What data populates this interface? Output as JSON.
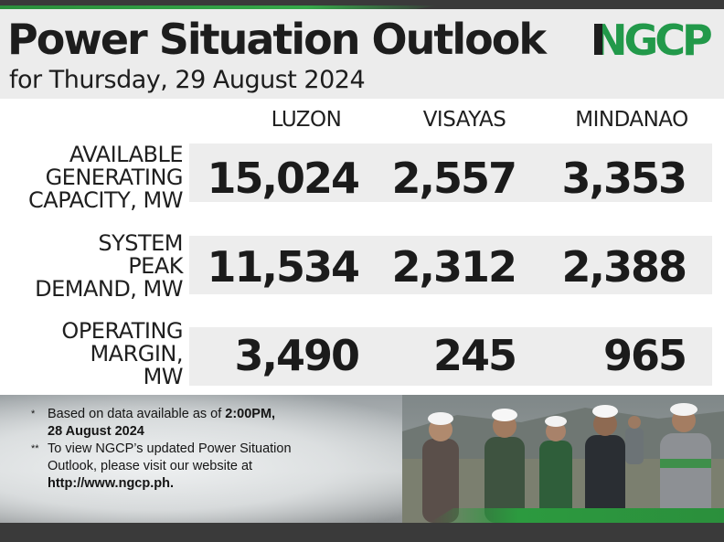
{
  "header": {
    "title": "Power Situation Outlook",
    "subtitle": "for Thursday, 29 August 2024",
    "logo_text": "NGCP",
    "accent_color": "#2b8f3c"
  },
  "table": {
    "columns": [
      "LUZON",
      "VISAYAS",
      "MINDANAO"
    ],
    "rows": [
      {
        "label_lines": [
          "AVAILABLE",
          "GENERATING",
          "CAPACITY, MW"
        ],
        "values": [
          "15,024",
          "2,557",
          "3,353"
        ]
      },
      {
        "label_lines": [
          "SYSTEM",
          "PEAK",
          "DEMAND, MW"
        ],
        "values": [
          "11,534",
          "2,312",
          "2,388"
        ]
      },
      {
        "label_lines": [
          "OPERATING",
          "MARGIN,",
          "MW"
        ],
        "values": [
          "3,490",
          "245",
          "965"
        ]
      }
    ]
  },
  "notes": {
    "note1_mark": "*",
    "note1_text": "Based on data available as of ",
    "note1_time": "2:00PM,",
    "note1_date": "28 August 2024",
    "note2_mark": "**",
    "note2_line1": "To view NGCP’s updated Power Situation",
    "note2_line2": "Outlook, please visit our website at",
    "note2_url": "http://www.ngcp.ph."
  }
}
